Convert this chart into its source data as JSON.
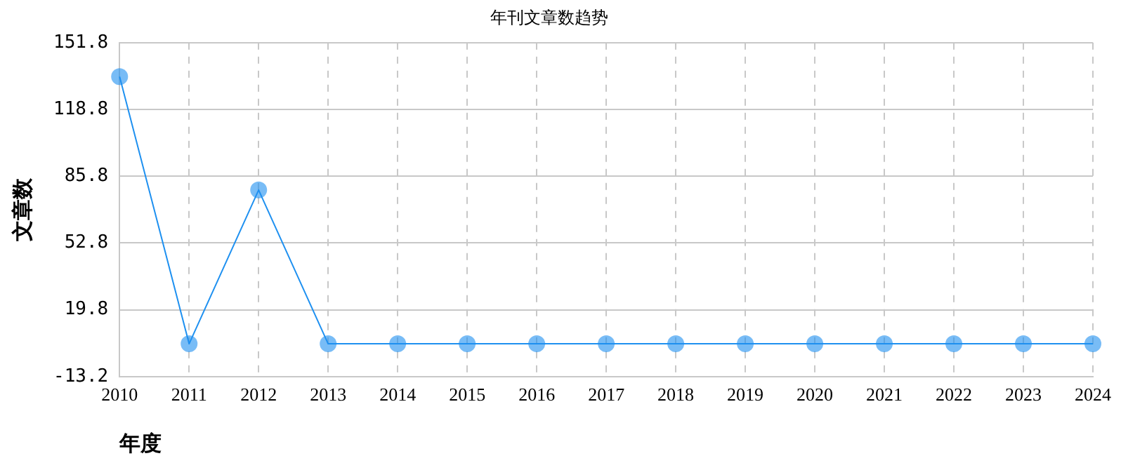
{
  "chart_data": {
    "type": "line",
    "title": "年刊文章数趋势",
    "xlabel": "年度",
    "ylabel": "文章数",
    "categories": [
      "2010",
      "2011",
      "2012",
      "2013",
      "2014",
      "2015",
      "2016",
      "2017",
      "2018",
      "2019",
      "2020",
      "2021",
      "2022",
      "2023",
      "2024"
    ],
    "series": [
      {
        "color": "#1e90f0",
        "values": [
          135,
          3,
          79,
          3,
          3,
          3,
          3,
          3,
          3,
          3,
          3,
          3,
          3,
          3,
          3
        ]
      }
    ],
    "ylim": [
      -13.2,
      151.8
    ],
    "yticks": [
      -13.2,
      19.8,
      52.8,
      85.8,
      118.8,
      151.8
    ],
    "grid": true,
    "marker": "circle",
    "line_style": "solid",
    "legend": false
  }
}
